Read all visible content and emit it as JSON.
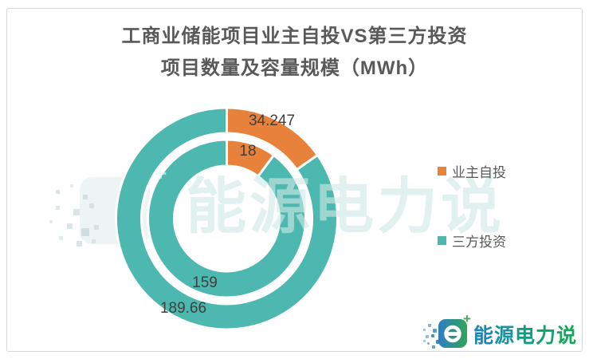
{
  "title": {
    "line1": "工商业储能项目业主自投VS第三方投资",
    "line2": "项目数量及容量规模（MWh）"
  },
  "chart_data": {
    "type": "donut",
    "nested": true,
    "title": "工商业储能项目业主自投VS第三方投资 项目数量及容量规模（MWh）",
    "categories": [
      "业主自投",
      "三方投资"
    ],
    "colors": [
      "#E8813A",
      "#4DB8AF"
    ],
    "rings": [
      {
        "name": "容量规模（MWh）",
        "position": "outer",
        "values": [
          34.247,
          189.66
        ]
      },
      {
        "name": "项目数量",
        "position": "inner",
        "values": [
          18,
          159
        ]
      }
    ],
    "legend": {
      "position": "right",
      "labels": [
        "业主自投",
        "三方投资"
      ]
    },
    "label_color": "#3f3f3f",
    "separator_color": "#ffffff"
  },
  "watermark": {
    "text": "能源电力说",
    "plus": "+"
  },
  "logo": {
    "text": "能源电力说",
    "plus": "+",
    "char_colors": [
      "#1C86B8",
      "#17929E",
      "#129B83",
      "#14A26C",
      "#17A75C"
    ],
    "icon_gradient_start": "#2F7EC2",
    "icon_gradient_end": "#2FA557"
  },
  "page": {
    "background": "#ffffff",
    "border_color": "#d8d8d8",
    "title_color": "#595959"
  }
}
